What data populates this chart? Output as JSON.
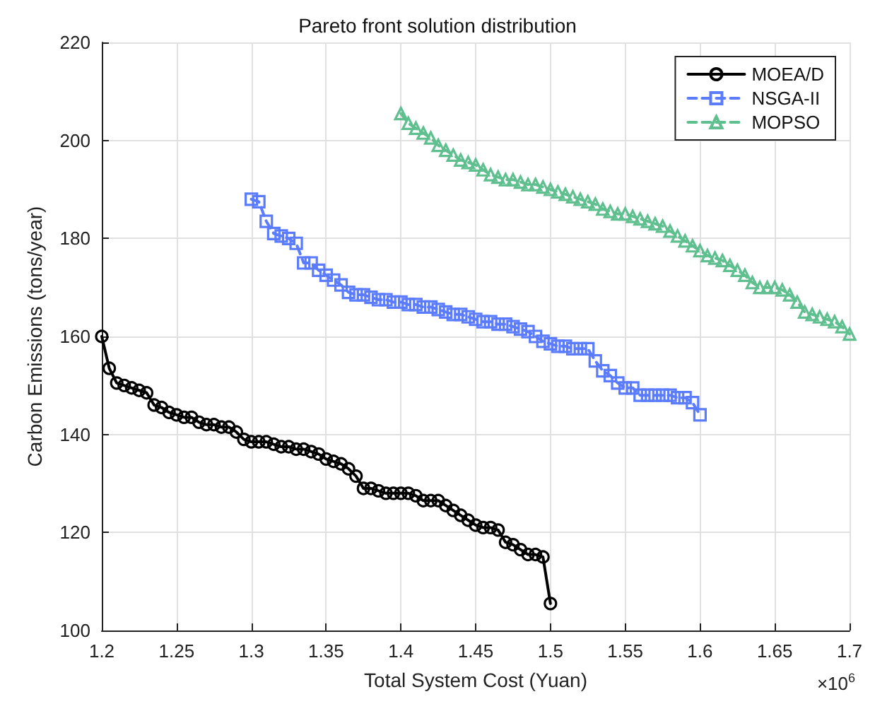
{
  "chart_data": {
    "type": "line",
    "title": "Pareto front solution distribution",
    "xlabel": "Total System Cost (Yuan)",
    "ylabel": "Carbon Emissions (tons/year)",
    "annotations": [
      "×10$^{6}$"
    ],
    "xlim": [
      1.2,
      1.7
    ],
    "xticks": [
      1.2,
      1.25,
      1.3,
      1.35,
      1.4,
      1.45,
      1.5,
      1.55,
      1.6,
      1.65,
      1.7
    ],
    "ylim": [
      100,
      220
    ],
    "yticks": [
      100,
      120,
      140,
      160,
      180,
      200,
      220
    ],
    "grid": true,
    "legend": "top right",
    "series": [
      {
        "name": "MOEA/D",
        "color": "#000000",
        "marker": "circle",
        "line_style": "solid",
        "x": [
          1.2,
          1.205,
          1.21,
          1.215,
          1.22,
          1.225,
          1.23,
          1.235,
          1.24,
          1.245,
          1.25,
          1.255,
          1.26,
          1.265,
          1.27,
          1.275,
          1.28,
          1.285,
          1.29,
          1.295,
          1.3,
          1.305,
          1.31,
          1.315,
          1.32,
          1.325,
          1.33,
          1.335,
          1.34,
          1.345,
          1.35,
          1.355,
          1.36,
          1.365,
          1.37,
          1.375,
          1.38,
          1.385,
          1.39,
          1.395,
          1.4,
          1.405,
          1.41,
          1.415,
          1.42,
          1.425,
          1.43,
          1.435,
          1.44,
          1.445,
          1.45,
          1.455,
          1.46,
          1.465,
          1.47,
          1.475,
          1.48,
          1.485,
          1.49,
          1.495,
          1.5
        ],
        "values": [
          160,
          153.5,
          150.5,
          150,
          149.5,
          149,
          148.5,
          146,
          145.5,
          144.5,
          144,
          143.5,
          143.5,
          142.5,
          142,
          142,
          141.5,
          141.5,
          140.5,
          139,
          138.5,
          138.5,
          138.5,
          138,
          137.5,
          137.5,
          137,
          137,
          136.5,
          136,
          135,
          134.5,
          134,
          133,
          131.5,
          129,
          129,
          128.5,
          128,
          128,
          128,
          128,
          127.5,
          126.5,
          126.5,
          126.5,
          125.5,
          124.5,
          123.5,
          122.5,
          121.5,
          121,
          121,
          120.5,
          118,
          117.5,
          116.5,
          115.5,
          115.5,
          115,
          105.5
        ]
      },
      {
        "name": "NSGA-II",
        "color": "#5b7cff",
        "marker": "square",
        "line_style": "dashed",
        "x": [
          1.3,
          1.305,
          1.31,
          1.315,
          1.32,
          1.325,
          1.33,
          1.335,
          1.34,
          1.345,
          1.35,
          1.355,
          1.36,
          1.365,
          1.37,
          1.375,
          1.38,
          1.385,
          1.39,
          1.395,
          1.4,
          1.405,
          1.41,
          1.415,
          1.42,
          1.425,
          1.43,
          1.435,
          1.44,
          1.445,
          1.45,
          1.455,
          1.46,
          1.465,
          1.47,
          1.475,
          1.48,
          1.485,
          1.49,
          1.495,
          1.5,
          1.505,
          1.51,
          1.515,
          1.52,
          1.525,
          1.53,
          1.535,
          1.54,
          1.545,
          1.55,
          1.555,
          1.56,
          1.565,
          1.57,
          1.575,
          1.58,
          1.585,
          1.59,
          1.595,
          1.6
        ],
        "values": [
          188,
          187.5,
          183.5,
          181,
          180.5,
          180,
          179,
          175,
          175,
          173.5,
          172.5,
          171.5,
          170.5,
          169,
          168.5,
          168.5,
          168,
          167.5,
          167.5,
          167,
          167,
          166.5,
          166.5,
          166,
          166,
          165.5,
          165,
          164.5,
          164.5,
          164,
          163.5,
          163,
          163,
          162.5,
          162.5,
          162,
          161.5,
          161,
          160,
          159,
          158.5,
          158,
          158,
          157.5,
          157.5,
          157.5,
          155,
          153,
          152,
          150.5,
          149.5,
          149.5,
          148,
          148,
          148,
          148,
          148,
          147.5,
          147.5,
          146.5,
          144
        ]
      },
      {
        "name": "MOPSO",
        "color": "#5fbf8f",
        "marker": "triangle",
        "line_style": "dashed",
        "x": [
          1.4,
          1.405,
          1.41,
          1.415,
          1.42,
          1.425,
          1.43,
          1.435,
          1.44,
          1.445,
          1.45,
          1.455,
          1.46,
          1.465,
          1.47,
          1.475,
          1.48,
          1.485,
          1.49,
          1.495,
          1.5,
          1.505,
          1.51,
          1.515,
          1.52,
          1.525,
          1.53,
          1.535,
          1.54,
          1.545,
          1.55,
          1.555,
          1.56,
          1.565,
          1.57,
          1.575,
          1.58,
          1.585,
          1.59,
          1.595,
          1.6,
          1.605,
          1.61,
          1.615,
          1.62,
          1.625,
          1.63,
          1.635,
          1.64,
          1.645,
          1.65,
          1.655,
          1.66,
          1.665,
          1.67,
          1.675,
          1.68,
          1.685,
          1.69,
          1.695,
          1.7
        ],
        "values": [
          205.5,
          203.5,
          202.5,
          201.5,
          200.5,
          199,
          198,
          197,
          196,
          195.5,
          195,
          194,
          193,
          192.5,
          192,
          192,
          191.5,
          191,
          191,
          190.5,
          190,
          189.5,
          189,
          188.5,
          188,
          187.5,
          187,
          186,
          185.5,
          185,
          185,
          184.5,
          184,
          183.5,
          183,
          182.5,
          181.5,
          180.5,
          179.5,
          178.5,
          177.5,
          176.5,
          176,
          175.5,
          174.5,
          173.5,
          172.5,
          171,
          170,
          170,
          170,
          169.5,
          168.5,
          167,
          165,
          164.5,
          164,
          163.5,
          163,
          162,
          160.5
        ]
      }
    ]
  }
}
